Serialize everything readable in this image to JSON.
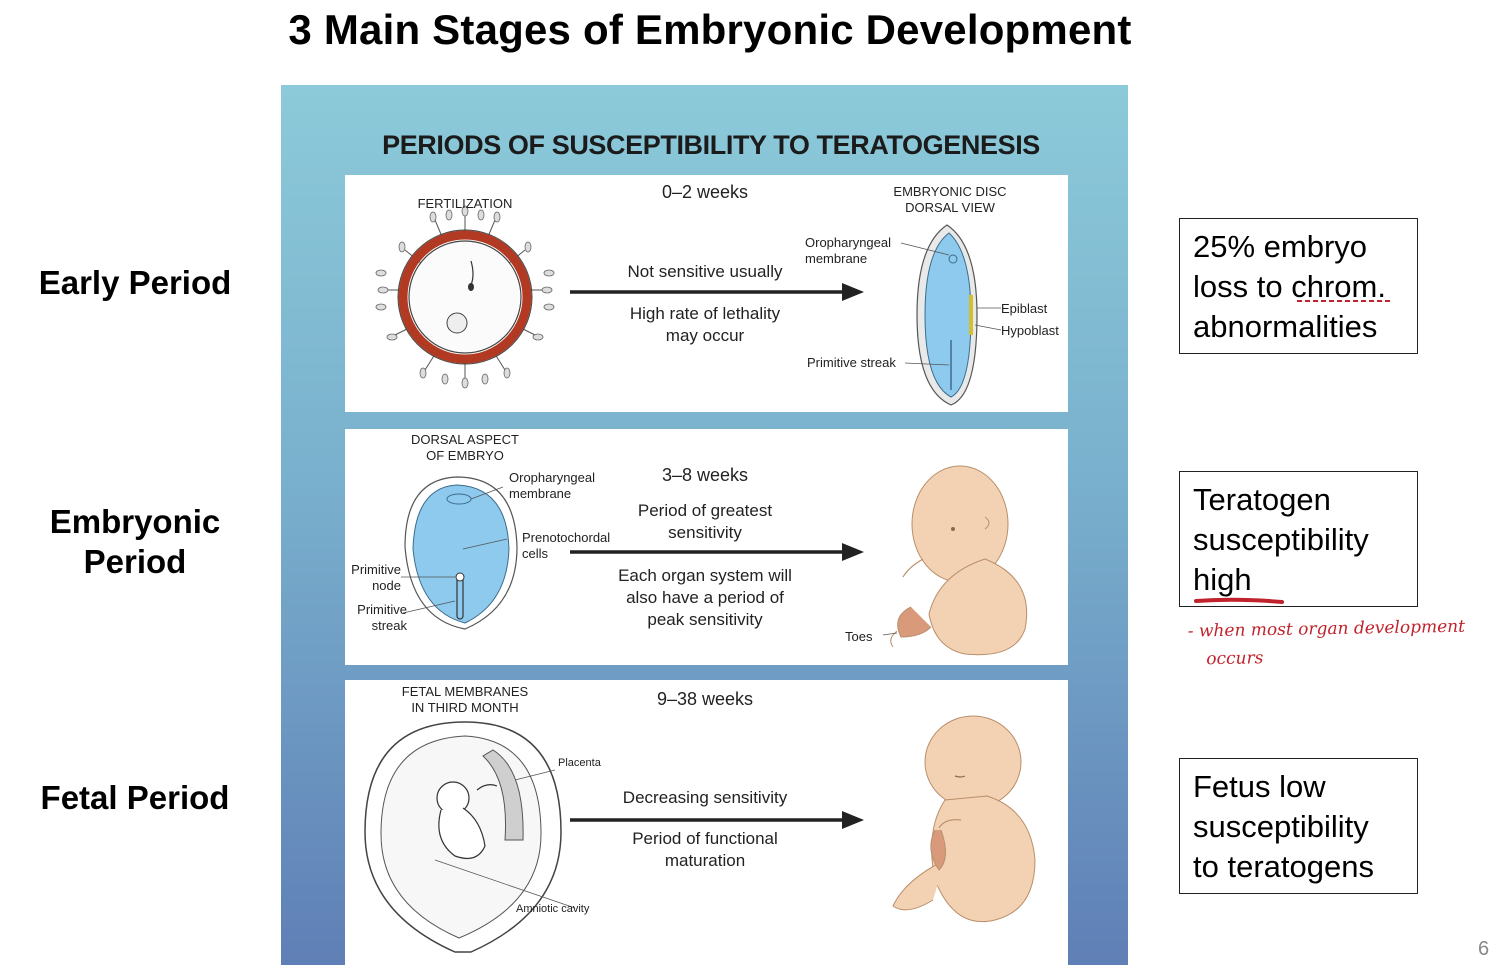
{
  "slide": {
    "title": "3 Main Stages of Embryonic Development",
    "page_number": "6"
  },
  "periods": {
    "early": "Early Period",
    "embryonic": "Embryonic Period",
    "fetal": "Fetal Period"
  },
  "figure": {
    "title": "PERIODS OF SUSCEPTIBILITY TO TERATOGENESIS",
    "panel1": {
      "left_label": "FERTILIZATION",
      "weeks": "0–2 weeks",
      "right_label_1": "EMBRYONIC DISC",
      "right_label_2": "DORSAL VIEW",
      "arrow_top": "Not sensitive usually",
      "arrow_bottom_1": "High rate of lethality",
      "arrow_bottom_2": "may occur",
      "oro_1": "Oropharyngeal",
      "oro_2": "membrane",
      "epiblast": "Epiblast",
      "hypoblast": "Hypoblast",
      "streak": "Primitive streak"
    },
    "panel2": {
      "left_label_1": "DORSAL ASPECT",
      "left_label_2": "OF EMBRYO",
      "weeks": "3–8 weeks",
      "oro_1": "Oropharyngeal",
      "oro_2": "membrane",
      "preno_1": "Prenotochordal",
      "preno_2": "cells",
      "node_1": "Primitive",
      "node_2": "node",
      "streak_1": "Primitive",
      "streak_2": "streak",
      "arrow_top_1": "Period of greatest",
      "arrow_top_2": "sensitivity",
      "arrow_bottom_1": "Each organ system will",
      "arrow_bottom_2": "also have a period of",
      "arrow_bottom_3": "peak sensitivity",
      "toes": "Toes"
    },
    "panel3": {
      "left_label_1": "FETAL MEMBRANES",
      "left_label_2": "IN THIRD MONTH",
      "weeks": "9–38 weeks",
      "placenta": "Placenta",
      "amniotic": "Amniotic cavity",
      "arrow_top": "Decreasing sensitivity",
      "arrow_bottom_1": "Period of functional",
      "arrow_bottom_2": "maturation"
    }
  },
  "notes": {
    "note1_a": "25% embryo",
    "note1_b": "loss to chrom.",
    "note1_c": "abnormalities",
    "note2_a": "Teratogen",
    "note2_b": "susceptibility",
    "note2_c": "high",
    "note3_a": "Fetus low",
    "note3_b": "susceptibility",
    "note3_c": "to teratogens"
  },
  "handwritten": {
    "line1": "- when most organ development",
    "line2": "occurs"
  },
  "colors": {
    "figure_top": "#8ccad9",
    "figure_bottom": "#5f7fb6",
    "embryo_blue": "#8ec9ee",
    "skin": "#f3d2b3",
    "ring_red": "#b33a22",
    "annotation_red": "#c0232c"
  }
}
